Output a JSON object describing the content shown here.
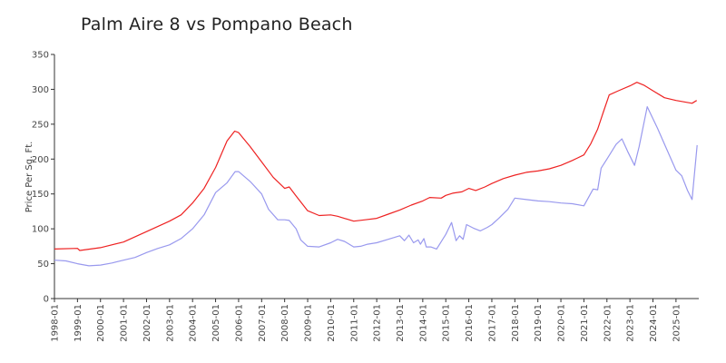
{
  "chart_data": {
    "type": "line",
    "title": "Palm Aire 8 vs Pompano Beach",
    "xlabel": "",
    "ylabel": "Price Per Sq. Ft.",
    "ylim": [
      0,
      350
    ],
    "yticks": [
      0,
      50,
      100,
      150,
      200,
      250,
      300,
      350
    ],
    "xlim": [
      1998.0,
      2025.99
    ],
    "xticks": [
      "1998-01",
      "1999-01",
      "2000-01",
      "2001-01",
      "2002-01",
      "2003-01",
      "2004-01",
      "2005-01",
      "2006-01",
      "2007-01",
      "2008-01",
      "2009-01",
      "2010-01",
      "2011-01",
      "2012-01",
      "2013-01",
      "2014-01",
      "2015-01",
      "2016-01",
      "2017-01",
      "2018-01",
      "2019-01",
      "2020-01",
      "2021-01",
      "2022-01",
      "2023-01",
      "2024-01",
      "2025-01"
    ],
    "grid": false,
    "legend": "none",
    "series": [
      {
        "color": "#ee2222",
        "points": [
          [
            1998.0,
            71
          ],
          [
            1999.0,
            72
          ],
          [
            1999.1,
            69
          ],
          [
            2000.0,
            73
          ],
          [
            2001.0,
            81
          ],
          [
            2002.0,
            96
          ],
          [
            2003.0,
            111
          ],
          [
            2003.5,
            120
          ],
          [
            2004.0,
            137
          ],
          [
            2004.5,
            158
          ],
          [
            2005.0,
            188
          ],
          [
            2005.5,
            226
          ],
          [
            2005.83,
            240
          ],
          [
            2006.0,
            238
          ],
          [
            2006.5,
            218
          ],
          [
            2007.0,
            196
          ],
          [
            2007.5,
            174
          ],
          [
            2008.0,
            158
          ],
          [
            2008.2,
            160
          ],
          [
            2008.5,
            147
          ],
          [
            2009.0,
            126
          ],
          [
            2009.5,
            119
          ],
          [
            2010.0,
            120
          ],
          [
            2010.3,
            118
          ],
          [
            2011.0,
            111
          ],
          [
            2011.5,
            113
          ],
          [
            2012.0,
            115
          ],
          [
            2012.5,
            121
          ],
          [
            2013.0,
            127
          ],
          [
            2013.5,
            134
          ],
          [
            2014.0,
            140
          ],
          [
            2014.3,
            145
          ],
          [
            2014.8,
            144
          ],
          [
            2015.0,
            148
          ],
          [
            2015.3,
            151
          ],
          [
            2015.7,
            153
          ],
          [
            2016.0,
            158
          ],
          [
            2016.3,
            155
          ],
          [
            2016.7,
            160
          ],
          [
            2017.0,
            165
          ],
          [
            2017.5,
            172
          ],
          [
            2018.0,
            177
          ],
          [
            2018.5,
            181
          ],
          [
            2019.0,
            183
          ],
          [
            2019.5,
            186
          ],
          [
            2020.0,
            191
          ],
          [
            2020.5,
            198
          ],
          [
            2021.0,
            206
          ],
          [
            2021.3,
            222
          ],
          [
            2021.6,
            243
          ],
          [
            2021.85,
            268
          ],
          [
            2022.1,
            292
          ],
          [
            2022.5,
            298
          ],
          [
            2023.0,
            305
          ],
          [
            2023.3,
            310
          ],
          [
            2023.6,
            306
          ],
          [
            2024.0,
            298
          ],
          [
            2024.5,
            288
          ],
          [
            2025.0,
            284
          ],
          [
            2025.7,
            280
          ],
          [
            2025.9,
            284
          ]
        ]
      },
      {
        "color": "#9999ee",
        "points": [
          [
            1998.0,
            55
          ],
          [
            1998.5,
            54
          ],
          [
            1999.0,
            50
          ],
          [
            1999.5,
            47
          ],
          [
            2000.0,
            48
          ],
          [
            2000.5,
            51
          ],
          [
            2001.0,
            55
          ],
          [
            2001.5,
            59
          ],
          [
            2002.0,
            66
          ],
          [
            2002.5,
            72
          ],
          [
            2003.0,
            77
          ],
          [
            2003.5,
            86
          ],
          [
            2004.0,
            100
          ],
          [
            2004.5,
            120
          ],
          [
            2005.0,
            152
          ],
          [
            2005.5,
            166
          ],
          [
            2005.85,
            182
          ],
          [
            2006.0,
            182
          ],
          [
            2006.5,
            168
          ],
          [
            2007.0,
            150
          ],
          [
            2007.3,
            128
          ],
          [
            2007.7,
            113
          ],
          [
            2008.0,
            113
          ],
          [
            2008.2,
            112
          ],
          [
            2008.5,
            100
          ],
          [
            2008.7,
            84
          ],
          [
            2009.0,
            75
          ],
          [
            2009.5,
            74
          ],
          [
            2010.0,
            80
          ],
          [
            2010.3,
            85
          ],
          [
            2010.6,
            82
          ],
          [
            2011.0,
            74
          ],
          [
            2011.3,
            75
          ],
          [
            2011.6,
            78
          ],
          [
            2012.0,
            80
          ],
          [
            2012.5,
            85
          ],
          [
            2013.0,
            90
          ],
          [
            2013.2,
            83
          ],
          [
            2013.4,
            91
          ],
          [
            2013.6,
            80
          ],
          [
            2013.8,
            84
          ],
          [
            2013.9,
            78
          ],
          [
            2014.05,
            86
          ],
          [
            2014.15,
            74
          ],
          [
            2014.35,
            74
          ],
          [
            2014.6,
            71
          ],
          [
            2015.0,
            92
          ],
          [
            2015.25,
            109
          ],
          [
            2015.45,
            83
          ],
          [
            2015.6,
            90
          ],
          [
            2015.75,
            85
          ],
          [
            2015.9,
            106
          ],
          [
            2016.2,
            101
          ],
          [
            2016.5,
            97
          ],
          [
            2016.8,
            102
          ],
          [
            2017.0,
            106
          ],
          [
            2017.3,
            115
          ],
          [
            2017.7,
            128
          ],
          [
            2018.0,
            144
          ],
          [
            2018.5,
            142
          ],
          [
            2019.0,
            140
          ],
          [
            2019.5,
            139
          ],
          [
            2020.0,
            137
          ],
          [
            2020.5,
            136
          ],
          [
            2021.0,
            133
          ],
          [
            2021.2,
            145
          ],
          [
            2021.4,
            157
          ],
          [
            2021.6,
            156
          ],
          [
            2021.75,
            187
          ],
          [
            2022.0,
            200
          ],
          [
            2022.4,
            221
          ],
          [
            2022.65,
            229
          ],
          [
            2022.9,
            211
          ],
          [
            2023.2,
            191
          ],
          [
            2023.4,
            218
          ],
          [
            2023.75,
            275
          ],
          [
            2024.2,
            244
          ],
          [
            2024.6,
            214
          ],
          [
            2025.0,
            184
          ],
          [
            2025.25,
            176
          ],
          [
            2025.5,
            155
          ],
          [
            2025.7,
            142
          ],
          [
            2025.92,
            220
          ]
        ]
      }
    ]
  }
}
